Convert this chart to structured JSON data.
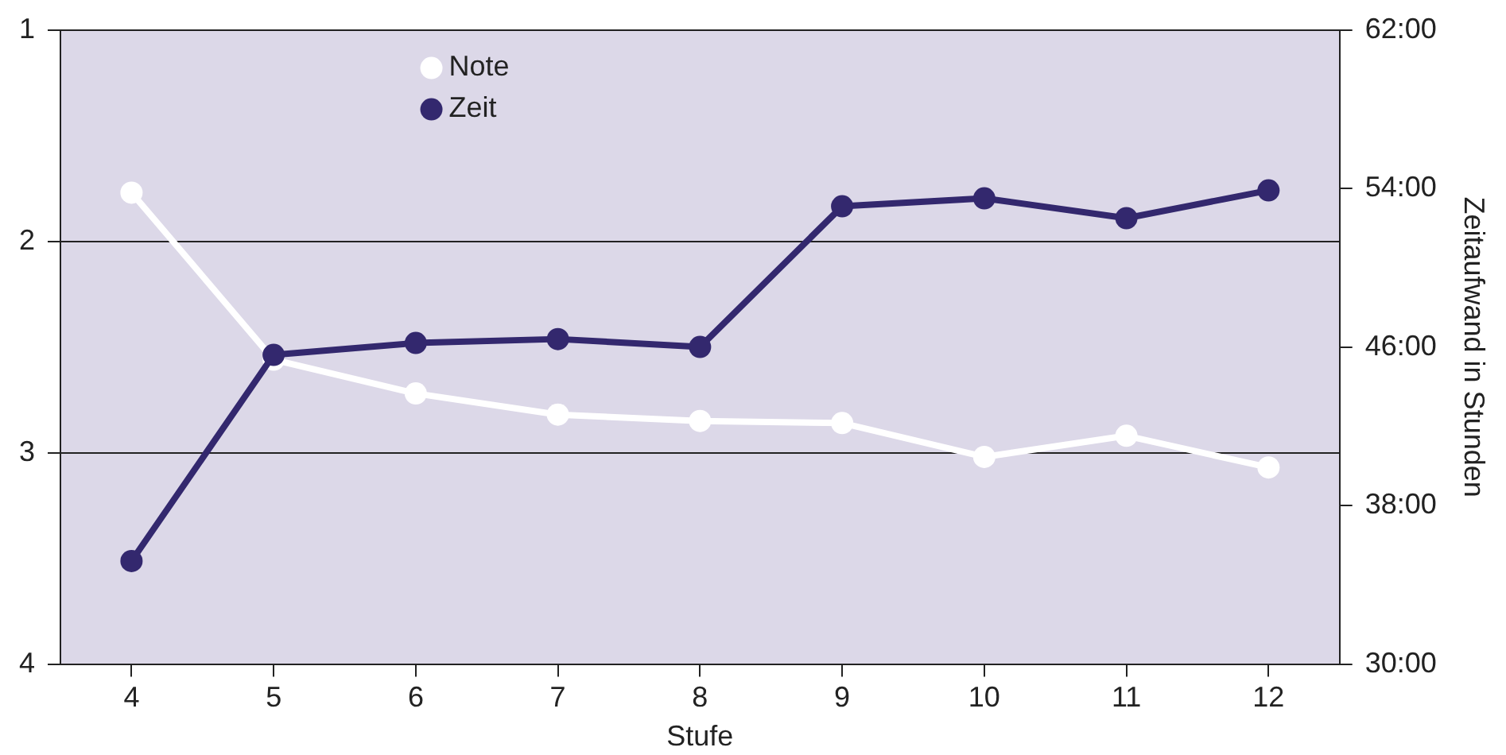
{
  "chart_data": {
    "type": "line",
    "xlabel": "Stufe",
    "y2label": "Zeitaufwand in Stunden",
    "categories": [
      "4",
      "5",
      "6",
      "7",
      "8",
      "9",
      "10",
      "11",
      "12"
    ],
    "series": [
      {
        "name": "Note",
        "color": "#ffffff",
        "values": [
          1.77,
          2.56,
          2.72,
          2.82,
          2.85,
          2.86,
          3.02,
          2.92,
          3.07
        ]
      },
      {
        "name": "Zeit",
        "color": "#33286e",
        "axis": "y2",
        "values": [
          35.2,
          45.6,
          46.2,
          46.4,
          46.0,
          53.1,
          53.5,
          52.5,
          53.9
        ]
      }
    ],
    "ylim": [
      4,
      1
    ],
    "yticks": [
      1,
      2,
      3,
      4
    ],
    "y2lim": [
      30,
      62
    ],
    "y2ticks": [
      {
        "value": 30,
        "label": "30:00"
      },
      {
        "value": 38,
        "label": "38:00"
      },
      {
        "value": 46,
        "label": "46:00"
      },
      {
        "value": 54,
        "label": "54:00"
      },
      {
        "value": 62,
        "label": "62:00"
      }
    ],
    "grid": "y",
    "legend": "top left",
    "marker": "circle",
    "line_style": "solid"
  }
}
